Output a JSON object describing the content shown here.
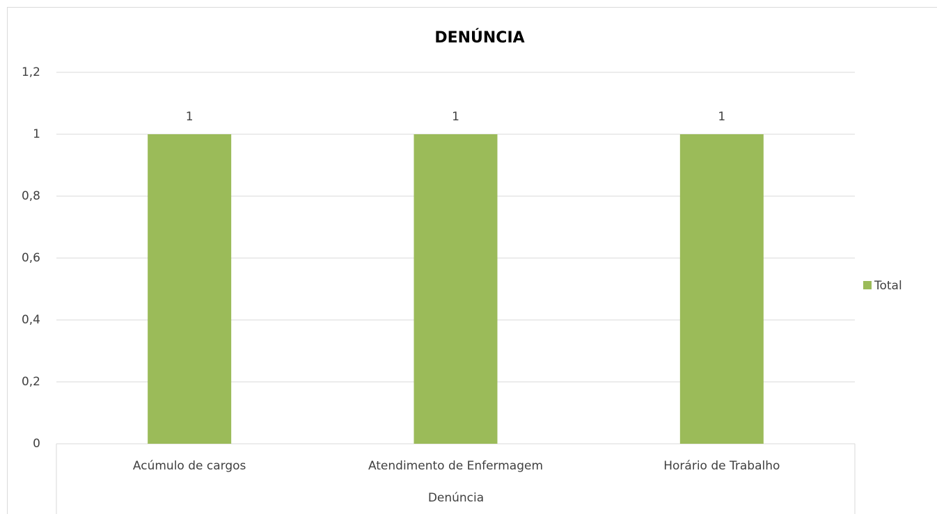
{
  "chart_data": {
    "type": "bar",
    "title": "DENÚNCIA",
    "x_label": "Denúncia",
    "categories": [
      "Acúmulo de cargos",
      "Atendimento de Enfermagem",
      "Horário de Trabalho"
    ],
    "series": [
      {
        "name": "Total",
        "color": "#9bbb59",
        "values": [
          1,
          1,
          1
        ]
      }
    ],
    "ylim": [
      0,
      1.2
    ],
    "yticks": [
      0,
      {
        "value": 0.2,
        "label": "0,2"
      },
      {
        "value": 0.4,
        "label": "0,4"
      },
      {
        "value": 0.6,
        "label": "0,6"
      },
      {
        "value": 0.8,
        "label": "0,8"
      },
      1,
      {
        "value": 1.2,
        "label": "1,2"
      }
    ],
    "grid": true,
    "legend": "right"
  }
}
